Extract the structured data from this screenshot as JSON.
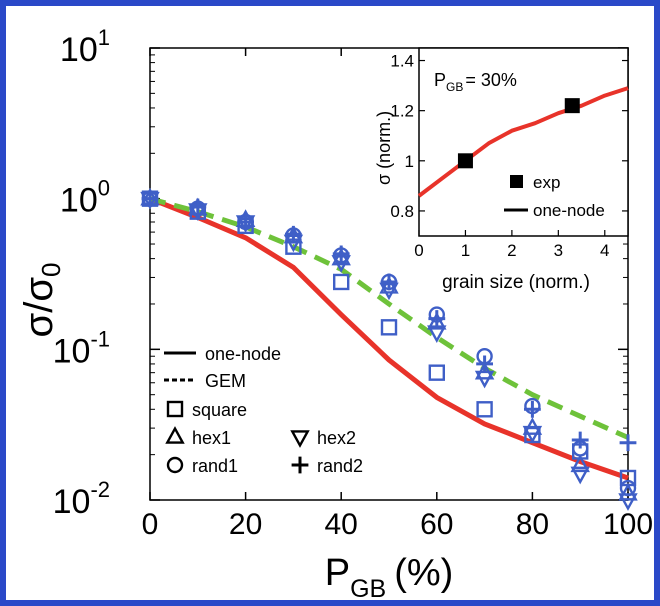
{
  "chart_data": [
    {
      "type": "scatter",
      "scale_y": "log",
      "xlabel": "P_GB (%)",
      "xlabel_main": "P",
      "xlabel_sub": "GB",
      "xlabel_unit": "(%)",
      "ylabel_sigma": "σ/σ",
      "ylabel_sub": "0",
      "xlim": [
        0,
        100
      ],
      "ylim": [
        0.01,
        10
      ],
      "x_ticks": [
        "0",
        "20",
        "40",
        "60",
        "80",
        "100"
      ],
      "y_ticks": [
        {
          "base": "10",
          "exp": "-2",
          "value": 0.01
        },
        {
          "base": "10",
          "exp": "-1",
          "value": 0.1
        },
        {
          "base": "10",
          "exp": "0",
          "value": 1
        },
        {
          "base": "10",
          "exp": "1",
          "value": 10
        }
      ],
      "series": [
        {
          "name": "one-node",
          "kind": "line",
          "color": "#e8332a",
          "dash": "solid",
          "x": [
            0,
            10,
            20,
            30,
            40,
            50,
            60,
            70,
            80,
            90,
            100
          ],
          "y": [
            1.0,
            0.75,
            0.55,
            0.35,
            0.17,
            0.085,
            0.048,
            0.032,
            0.024,
            0.018,
            0.014
          ]
        },
        {
          "name": "GEM",
          "kind": "line",
          "color": "#6ec23a",
          "dash": "dashed",
          "x": [
            0,
            10,
            20,
            30,
            40,
            50,
            60,
            70,
            80,
            90,
            100
          ],
          "y": [
            1.0,
            0.82,
            0.65,
            0.48,
            0.34,
            0.2,
            0.12,
            0.075,
            0.05,
            0.036,
            0.026
          ]
        },
        {
          "name": "square",
          "kind": "marker",
          "marker": "square",
          "color": "#3f5fc7",
          "x": [
            0,
            10,
            20,
            30,
            40,
            50,
            60,
            70,
            80,
            90,
            100
          ],
          "y": [
            1.0,
            0.82,
            0.66,
            0.48,
            0.28,
            0.14,
            0.07,
            0.04,
            0.027,
            0.021,
            0.014
          ]
        },
        {
          "name": "hex1",
          "kind": "marker",
          "marker": "triangle-up",
          "color": "#3f5fc7",
          "x": [
            0,
            10,
            20,
            30,
            40,
            50,
            60,
            70,
            80,
            90,
            100
          ],
          "y": [
            1.0,
            0.86,
            0.72,
            0.56,
            0.4,
            0.26,
            0.15,
            0.07,
            0.03,
            0.017,
            0.011
          ]
        },
        {
          "name": "hex2",
          "kind": "marker",
          "marker": "triangle-down",
          "color": "#3f5fc7",
          "x": [
            0,
            10,
            20,
            30,
            40,
            50,
            60,
            70,
            80,
            90,
            100
          ],
          "y": [
            1.0,
            0.84,
            0.7,
            0.52,
            0.38,
            0.25,
            0.13,
            0.065,
            0.028,
            0.015,
            0.01
          ]
        },
        {
          "name": "rand1",
          "kind": "marker",
          "marker": "circle",
          "color": "#3f5fc7",
          "x": [
            0,
            10,
            20,
            30,
            40,
            50,
            60,
            70,
            80,
            90,
            100
          ],
          "y": [
            1.0,
            0.86,
            0.7,
            0.57,
            0.42,
            0.28,
            0.17,
            0.09,
            0.042,
            0.022,
            0.012
          ]
        },
        {
          "name": "rand2",
          "kind": "marker",
          "marker": "plus",
          "color": "#3f5fc7",
          "x": [
            0,
            10,
            20,
            30,
            40,
            50,
            60,
            70,
            80,
            90,
            100
          ],
          "y": [
            1.0,
            0.88,
            0.7,
            0.58,
            0.43,
            0.28,
            0.16,
            0.08,
            0.04,
            0.025,
            0.024
          ]
        }
      ],
      "legend": {
        "placement": "bottom-left",
        "line_labels": [
          "one-node",
          "GEM"
        ],
        "marker_labels": [
          "square",
          "hex1",
          "hex2",
          "rand1",
          "rand2"
        ]
      }
    },
    {
      "type": "line",
      "inset": true,
      "annotation_main": "P",
      "annotation_sub": "GB",
      "annotation_value": "= 30%",
      "xlabel": "grain size (norm.)",
      "ylabel": "σ (norm.)",
      "xlim": [
        0,
        4.5
      ],
      "ylim": [
        0.7,
        1.45
      ],
      "x_ticks": [
        "0",
        "1",
        "2",
        "3",
        "4"
      ],
      "y_ticks": [
        "0.8",
        "1",
        "1.2",
        "1.4"
      ],
      "series": [
        {
          "name": "one-node",
          "kind": "line",
          "color": "#e8332a",
          "x": [
            0,
            0.5,
            1,
            1.5,
            2,
            2.5,
            3,
            3.5,
            4,
            4.5
          ],
          "y": [
            0.86,
            0.93,
            1.0,
            1.07,
            1.12,
            1.15,
            1.19,
            1.22,
            1.26,
            1.29
          ]
        },
        {
          "name": "exp",
          "kind": "marker",
          "marker": "square-filled",
          "color": "#000000",
          "x": [
            1,
            3.3
          ],
          "y": [
            1.0,
            1.22
          ]
        }
      ],
      "legend": {
        "placement": "bottom-right",
        "labels": [
          "exp",
          "one-node"
        ]
      }
    }
  ]
}
